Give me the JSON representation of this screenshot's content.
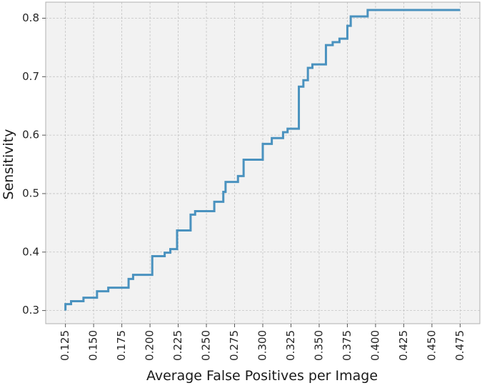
{
  "chart_data": {
    "type": "line",
    "step": true,
    "title": "",
    "xlabel": "Average False Positives per Image",
    "ylabel": "Sensitivity",
    "xlim": [
      0.1075,
      0.4925
    ],
    "ylim": [
      0.2775,
      0.8275
    ],
    "xticks": [
      0.125,
      0.15,
      0.175,
      0.2,
      0.225,
      0.25,
      0.275,
      0.3,
      0.325,
      0.35,
      0.375,
      0.4,
      0.425,
      0.45,
      0.475
    ],
    "xtick_labels": [
      "0.125",
      "0.150",
      "0.175",
      "0.200",
      "0.225",
      "0.250",
      "0.275",
      "0.300",
      "0.325",
      "0.350",
      "0.375",
      "0.400",
      "0.425",
      "0.450",
      "0.475"
    ],
    "yticks": [
      0.3,
      0.4,
      0.5,
      0.6,
      0.7,
      0.8
    ],
    "ytick_labels": [
      "0.3",
      "0.4",
      "0.5",
      "0.6",
      "0.7",
      "0.8"
    ],
    "grid": true,
    "colors": {
      "line": "#4a92bf",
      "plot_bg": "#f2f2f2",
      "grid": "#c4c4c4",
      "spine": "#b0b0b0"
    },
    "series": [
      {
        "x": [
          0.125,
          0.125,
          0.13,
          0.141,
          0.153,
          0.163,
          0.181,
          0.185,
          0.202,
          0.213,
          0.218,
          0.224,
          0.236,
          0.24,
          0.257,
          0.26,
          0.265,
          0.267,
          0.278,
          0.283,
          0.3,
          0.308,
          0.318,
          0.322,
          0.331,
          0.332,
          0.336,
          0.34,
          0.344,
          0.35,
          0.356,
          0.362,
          0.368,
          0.375,
          0.378,
          0.393,
          0.475
        ],
        "y": [
          0.3,
          0.311,
          0.316,
          0.322,
          0.333,
          0.339,
          0.354,
          0.361,
          0.393,
          0.399,
          0.405,
          0.437,
          0.464,
          0.47,
          0.486,
          0.486,
          0.503,
          0.52,
          0.53,
          0.558,
          0.585,
          0.595,
          0.605,
          0.611,
          0.611,
          0.683,
          0.694,
          0.715,
          0.721,
          0.721,
          0.754,
          0.759,
          0.765,
          0.787,
          0.803,
          0.814,
          0.814
        ]
      }
    ]
  }
}
